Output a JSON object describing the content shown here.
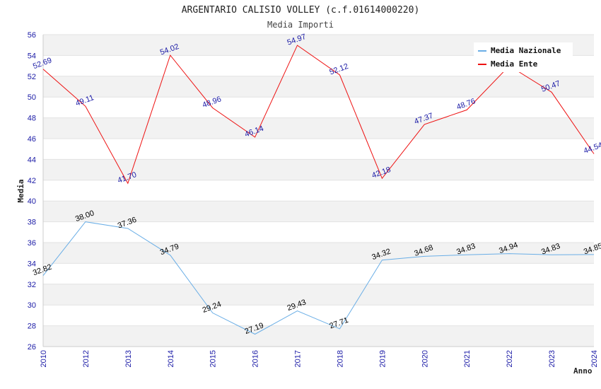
{
  "chart_data": {
    "type": "line",
    "title": "ARGENTARIO CALISIO VOLLEY (c.f.01614000220)",
    "subtitle": "Media Importi",
    "xlabel": "Anno",
    "ylabel": "Media",
    "ylim": [
      26,
      56
    ],
    "y_ticks": [
      "26",
      "28",
      "30",
      "32",
      "34",
      "36",
      "38",
      "40",
      "42",
      "44",
      "46",
      "48",
      "50",
      "52",
      "54",
      "56"
    ],
    "categories": [
      "2010",
      "2012",
      "2013",
      "2014",
      "2015",
      "2016",
      "2017",
      "2018",
      "2019",
      "2020",
      "2021",
      "2022",
      "2023",
      "2024"
    ],
    "series": [
      {
        "name": "Media Nazionale",
        "color": "#6aaee6",
        "label_color": "#000000",
        "values": [
          32.82,
          38.0,
          37.36,
          34.79,
          29.24,
          27.19,
          29.43,
          27.71,
          34.32,
          34.68,
          34.83,
          34.94,
          34.83,
          34.85
        ],
        "labels": [
          "32.82",
          "38.00",
          "37.36",
          "34.79",
          "29.24",
          "27.19",
          "29.43",
          "27.71",
          "34.32",
          "34.68",
          "34.83",
          "34.94",
          "34.83",
          "34.85"
        ]
      },
      {
        "name": "Media Ente",
        "color": "#ee1111",
        "label_color": "#1a1aa6",
        "values": [
          52.69,
          49.11,
          41.7,
          54.02,
          48.96,
          46.14,
          54.97,
          52.12,
          42.18,
          47.37,
          48.76,
          53.0,
          50.47,
          44.54
        ],
        "labels": [
          "52.69",
          "49.11",
          "41.70",
          "54.02",
          "48.96",
          "46.14",
          "54.97",
          "52.12",
          "42.18",
          "47.37",
          "48.76",
          "",
          "50.47",
          "44.54"
        ]
      }
    ],
    "legend_position": "top-right",
    "grid": true,
    "band_colors": [
      "#f2f2f2",
      "#ffffff"
    ]
  }
}
